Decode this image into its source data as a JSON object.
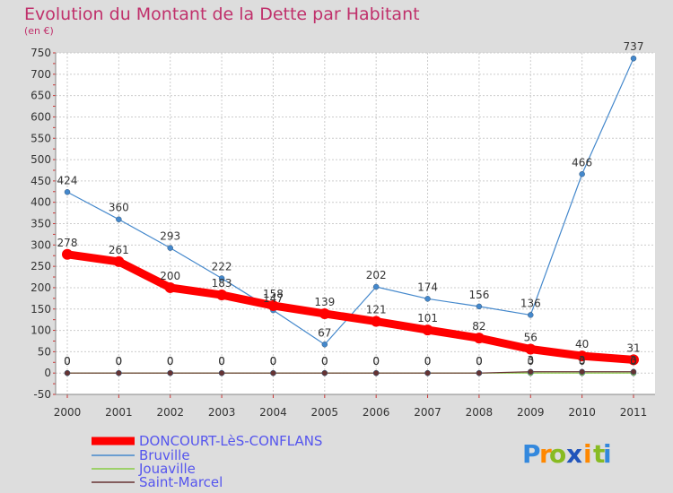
{
  "chart_data": {
    "type": "line",
    "title": "Evolution du Montant de la Dette par Habitant",
    "subtitle": "(en €)",
    "xlabel": "",
    "ylabel": "",
    "ylim": [
      -50,
      750
    ],
    "yticks": [
      -50,
      0,
      50,
      100,
      150,
      200,
      250,
      300,
      350,
      400,
      450,
      500,
      550,
      600,
      650,
      700,
      750
    ],
    "grid": true,
    "legend_position": "bottom-left",
    "x": [
      "2000",
      "2001",
      "2002",
      "2003",
      "2004",
      "2005",
      "2006",
      "2007",
      "2008",
      "2009",
      "2010",
      "2011"
    ],
    "series": [
      {
        "name": "DONCOURT-LèS-CONFLANS",
        "color": "#ff0000",
        "values": [
          278,
          261,
          200,
          183,
          158,
          139,
          121,
          101,
          82,
          56,
          40,
          31
        ],
        "labels": [
          "278",
          "261",
          "200",
          "183",
          "158",
          "139",
          "121",
          "101",
          "82",
          "56",
          "40",
          "31"
        ]
      },
      {
        "name": "Bruville",
        "color": "#4488cc",
        "values": [
          424,
          360,
          293,
          222,
          147,
          67,
          202,
          174,
          156,
          136,
          466,
          737
        ],
        "labels": [
          "424",
          "360",
          "293",
          "222",
          "147",
          "67",
          "202",
          "174",
          "156",
          "136",
          "466",
          "737"
        ]
      },
      {
        "name": "Jouaville",
        "color": "#88cc44",
        "values": [
          0,
          0,
          0,
          0,
          0,
          0,
          0,
          0,
          0,
          0,
          0,
          0
        ],
        "labels": [
          "0",
          "0",
          "0",
          "0",
          "0",
          "0",
          "0",
          "0",
          "0",
          "0",
          "0",
          "0"
        ]
      },
      {
        "name": "Saint-Marcel",
        "color": "#663333",
        "values": [
          0,
          0,
          0,
          0,
          0,
          0,
          0,
          0,
          0,
          3,
          3,
          3
        ],
        "labels": [
          "0",
          "0",
          "0",
          "0",
          "0",
          "0",
          "0",
          "0",
          "0",
          "3",
          "3",
          "3"
        ]
      }
    ]
  },
  "logo": {
    "text": "Proxiti",
    "letters": [
      "P",
      "r",
      "o",
      "x",
      "i",
      "t",
      "i"
    ],
    "colors": [
      "#3388dd",
      "#ff8800",
      "#88bb22",
      "#2255bb",
      "#ff8800",
      "#88bb22",
      "#3388dd"
    ]
  }
}
